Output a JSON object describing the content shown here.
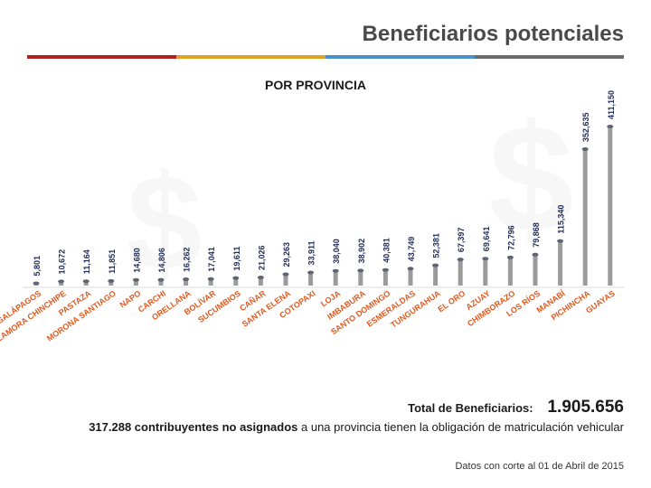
{
  "page": {
    "title": "Beneficiarios potenciales",
    "subtitle": "POR PROVINCIA",
    "total_label": "Total de Beneficiarios:",
    "total_value": "1.905.656",
    "note_bold": "317.288 contribuyentes no asignados",
    "note_rest": " a una provincia tienen la obligación de matriculación vehicular",
    "source": "Datos con corte al 01 de Abril de 2015",
    "colors": {
      "bar": "#8a8a8a",
      "value": "#1f2a5a",
      "category": "#e05a20",
      "accent": [
        "#b02020",
        "#e0a020",
        "#4b8fd0",
        "#6a6a6a"
      ]
    }
  },
  "chart_data": {
    "type": "bar",
    "title": "POR PROVINCIA",
    "xlabel": "",
    "ylabel": "",
    "ylim": [
      0,
      411150
    ],
    "categories": [
      "GALÁPAGOS",
      "ZAMORA CHINCHIPE",
      "PASTAZA",
      "MORONA SANTIAGO",
      "NAPO",
      "CARCHI",
      "ORELLANA",
      "BOLÍVAR",
      "SUCUMBIOS",
      "CAÑAR",
      "SANTA ELENA",
      "COTOPAXI",
      "LOJA",
      "IMBABURA",
      "SANTO DOMINGO",
      "ESMERALDAS",
      "TUNGURAHUA",
      "EL ORO",
      "AZUAY",
      "CHIMBORAZO",
      "LOS RÍOS",
      "MANABÍ",
      "PICHINCHA",
      "GUAYAS"
    ],
    "values": [
      5801,
      10672,
      11164,
      11851,
      14680,
      14806,
      16262,
      17041,
      19611,
      21026,
      29263,
      33911,
      38040,
      38902,
      40381,
      43749,
      52381,
      67397,
      69641,
      72796,
      79868,
      115340,
      352635,
      411150
    ],
    "value_labels": [
      "5,801",
      "10,672",
      "11,164",
      "11,851",
      "14,680",
      "14,806",
      "16,262",
      "17,041",
      "19,611",
      "21,026",
      "29,263",
      "33,911",
      "38,040",
      "38,902",
      "40,381",
      "43,749",
      "52,381",
      "67,397",
      "69,641",
      "72,796",
      "79,868",
      "115,340",
      "352,635",
      "411,150"
    ]
  }
}
